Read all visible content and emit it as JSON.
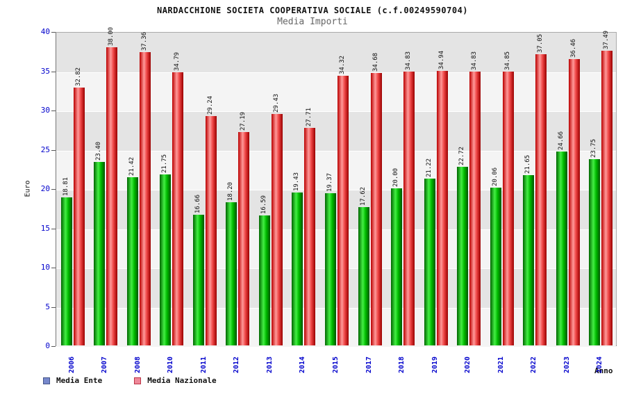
{
  "chart_data": {
    "type": "bar",
    "title": "NARDACCHIONE SOCIETA COOPERATIVA SOCIALE (c.f.00249590704)",
    "subtitle": "Media Importi",
    "xlabel": "Anno",
    "ylabel": "Euro",
    "ylim": [
      0,
      40
    ],
    "ytick_step": 5,
    "grid": true,
    "band_colors": [
      "#e4e4e4",
      "#f4f4f4"
    ],
    "legend_position": "bottom-left",
    "value_label_decimals": 2,
    "categories": [
      "2006",
      "2007",
      "2008",
      "2010",
      "2011",
      "2012",
      "2013",
      "2014",
      "2015",
      "2017",
      "2018",
      "2019",
      "2020",
      "2021",
      "2022",
      "2023",
      "2024"
    ],
    "series": [
      {
        "name": "Media Ente",
        "legend_color": "#7788cc",
        "legend_border": "#445588",
        "gradient": [
          "#006600",
          "#44ee44",
          "#00bb00",
          "#005500"
        ],
        "values": [
          18.81,
          23.4,
          21.42,
          21.75,
          16.66,
          18.2,
          16.59,
          19.43,
          19.37,
          17.62,
          20.0,
          21.22,
          22.72,
          20.06,
          21.65,
          24.66,
          23.75
        ]
      },
      {
        "name": "Media Nazionale",
        "legend_color": "#ee8899",
        "legend_border": "#bb3344",
        "gradient": [
          "#bb0000",
          "#ff9999",
          "#ee4444",
          "#990000"
        ],
        "values": [
          32.82,
          38.0,
          37.36,
          34.79,
          29.24,
          27.19,
          29.43,
          27.71,
          34.32,
          34.68,
          34.83,
          34.94,
          34.83,
          34.85,
          37.05,
          36.46,
          37.49
        ]
      }
    ]
  }
}
